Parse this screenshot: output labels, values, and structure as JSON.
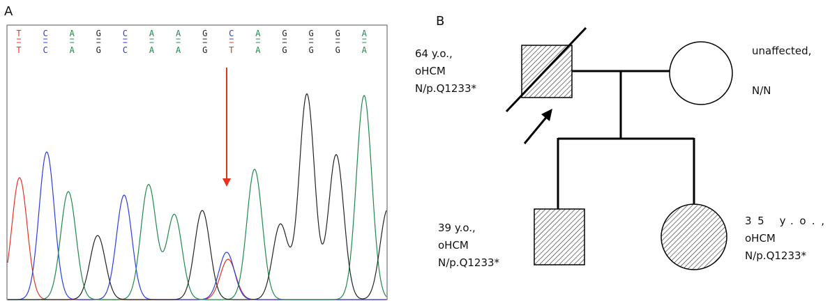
{
  "panel_a": {
    "label": "A",
    "reference_sequence": [
      "T",
      "C",
      "A",
      "G",
      "C",
      "A",
      "A",
      "G",
      "C",
      "A",
      "G",
      "G",
      "G",
      "A"
    ],
    "sample_sequence": [
      "T",
      "C",
      "A",
      "G",
      "C",
      "A",
      "A",
      "G",
      "T",
      "A",
      "G",
      "G",
      "G",
      "A"
    ]
  },
  "panel_b": {
    "label": "B",
    "father": [
      "64 y.o.,",
      "oHCM",
      "N/p.Q1233*"
    ],
    "mother": [
      "unaffected,",
      "N/N"
    ],
    "son": [
      "39 y.o.,",
      "oHCM",
      "N/p.Q1233*"
    ],
    "daughter": [
      "35 y.o.,",
      "oHCM",
      "N/p.Q1233*"
    ]
  }
}
